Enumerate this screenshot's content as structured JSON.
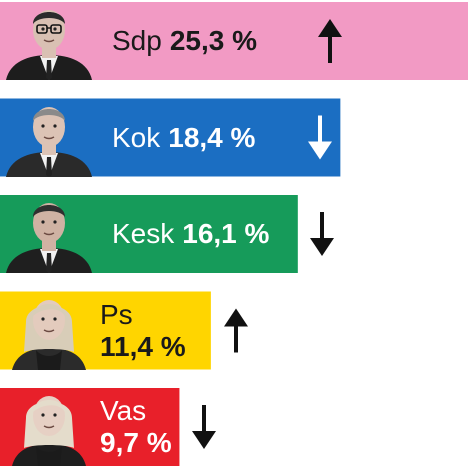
{
  "chart_data": {
    "type": "bar",
    "orientation": "horizontal",
    "categories": [
      "Sdp",
      "Kok",
      "Kesk",
      "Ps",
      "Vas"
    ],
    "values": [
      25.3,
      18.4,
      16.1,
      11.4,
      9.7
    ],
    "value_labels": [
      "25,3 %",
      "18,4 %",
      "16,1 %",
      "11,4 %",
      "9,7 %"
    ],
    "trend": [
      "up",
      "down",
      "down",
      "up",
      "down"
    ],
    "colors": [
      "#f29ac4",
      "#1b6ec2",
      "#169b5a",
      "#ffd500",
      "#e8202a"
    ],
    "label_colors": [
      "#1a1a1a",
      "#ffffff",
      "#ffffff",
      "#1a1a1a",
      "#ffffff"
    ],
    "title": "",
    "xlabel": "",
    "ylabel": "",
    "xlim": [
      0,
      25.3
    ],
    "grid": false,
    "legend": "none"
  }
}
